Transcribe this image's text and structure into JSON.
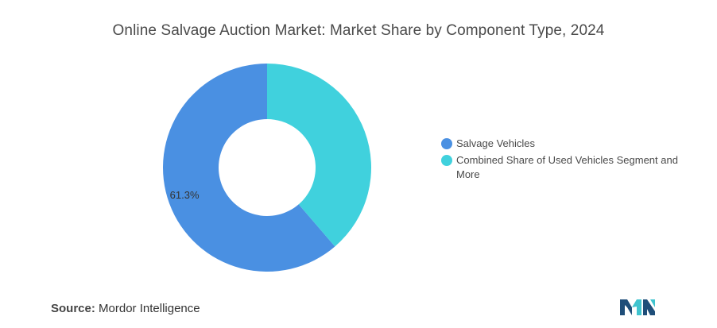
{
  "chart_data": {
    "type": "pie",
    "title": "Online Salvage Auction Market: Market Share by Component Type, 2024",
    "slices": [
      {
        "name": "Salvage Vehicles",
        "value": 61.3,
        "color": "#4a90e2",
        "label": "61.3%"
      },
      {
        "name": "Combined Share of Used Vehicles Segment and More",
        "value": 38.7,
        "color": "#40d1dd",
        "label": ""
      }
    ],
    "donut": true,
    "legend_position": "right"
  },
  "source": {
    "label": "Source:",
    "text": "Mordor Intelligence"
  },
  "logo": {
    "icon": "mordor-intelligence-logo",
    "colors": [
      "#1f4e79",
      "#40c4cf"
    ]
  }
}
